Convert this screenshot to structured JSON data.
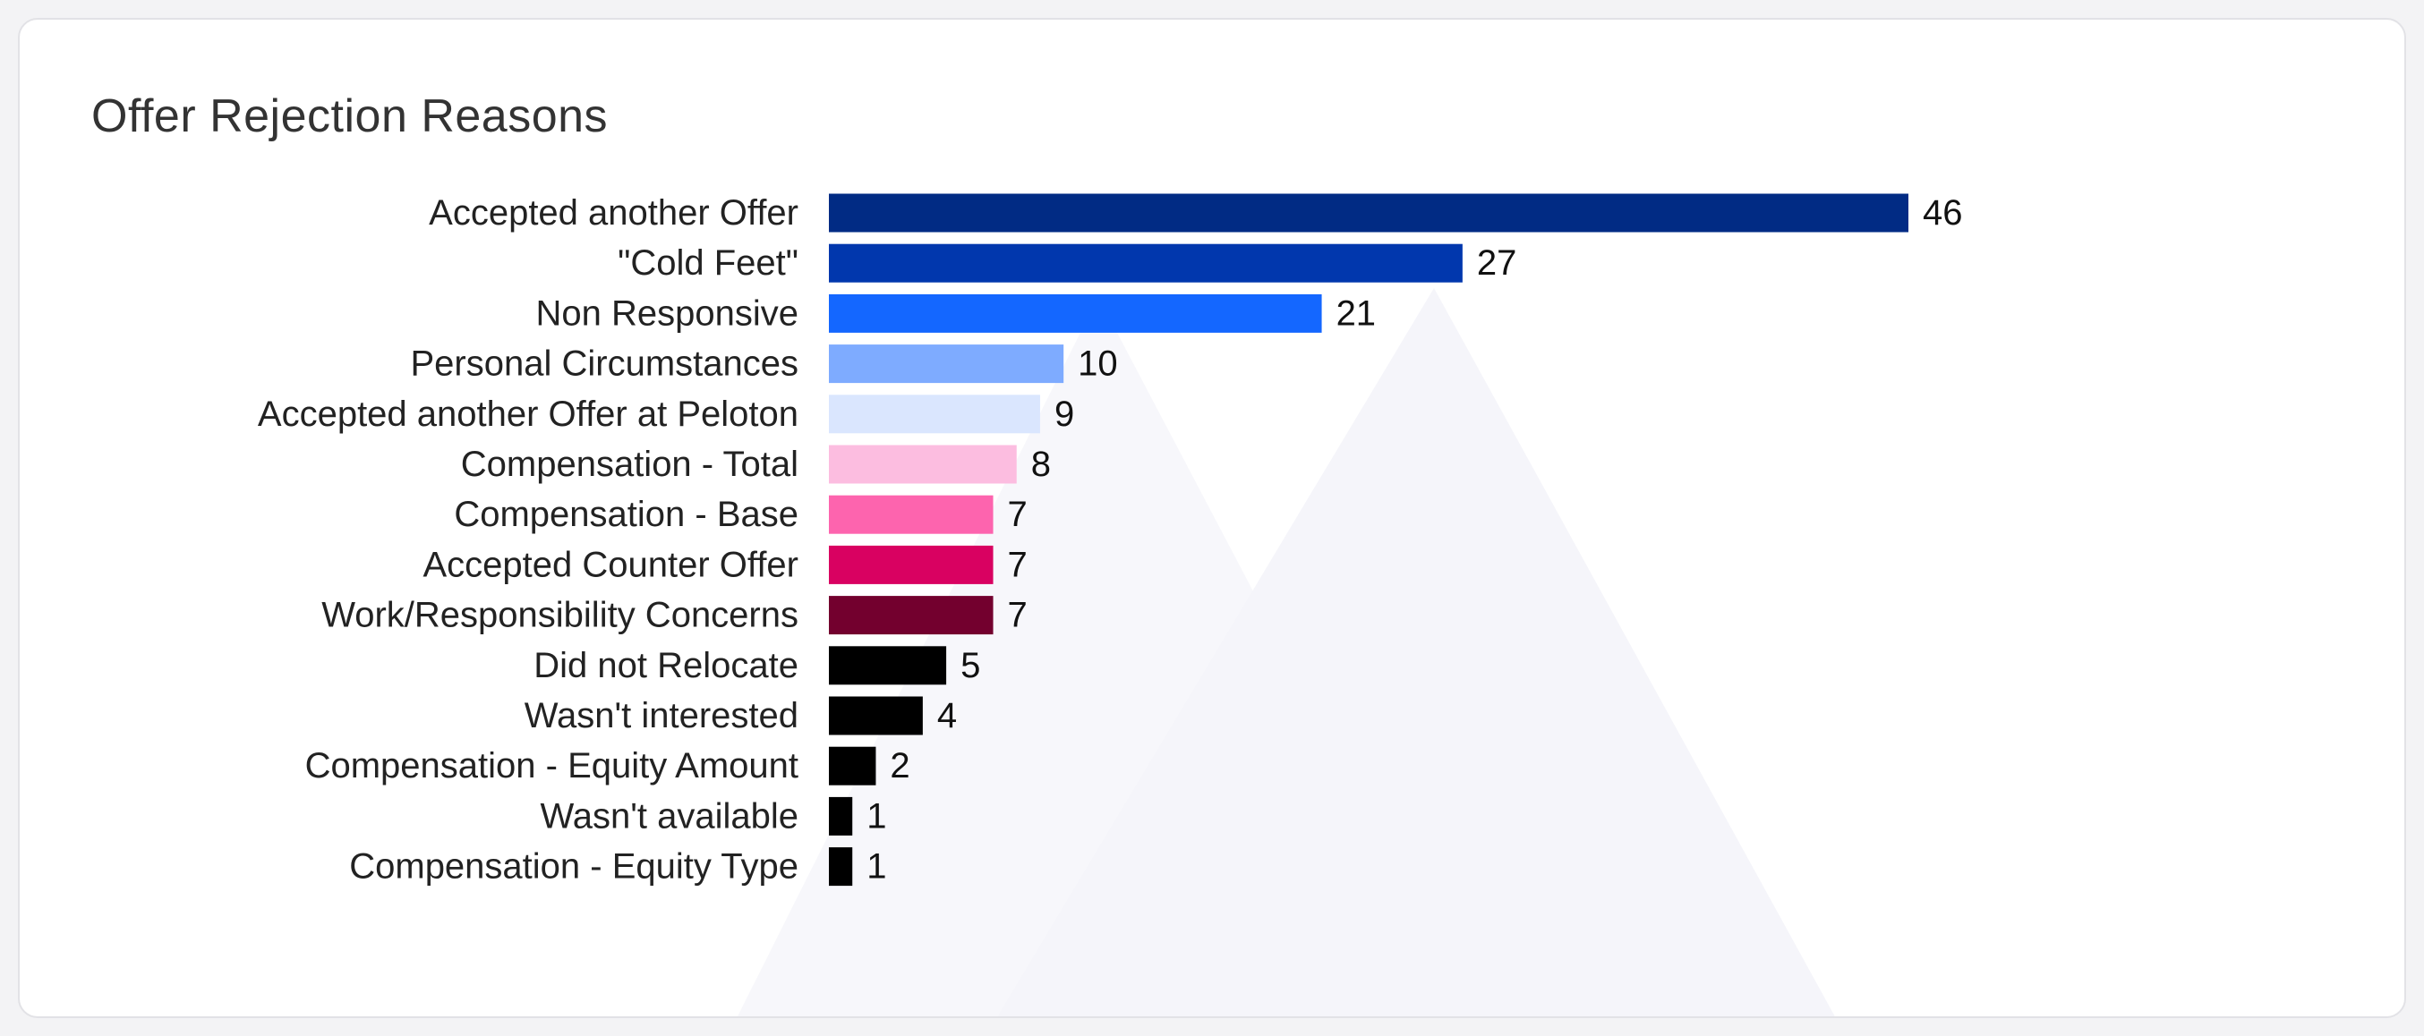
{
  "card": {
    "title": "Offer Rejection Reasons"
  },
  "chart_data": {
    "type": "bar",
    "orientation": "horizontal",
    "title": "Offer Rejection Reasons",
    "xlabel": "",
    "ylabel": "",
    "grid": false,
    "legend": "none",
    "xlim": [
      0,
      46
    ],
    "categories": [
      "Accepted another Offer",
      "\"Cold Feet\"",
      "Non Responsive",
      "Personal Circumstances",
      "Accepted another Offer at Peloton",
      "Compensation - Total",
      "Compensation - Base",
      "Accepted Counter Offer",
      "Work/Responsibility Concerns",
      "Did not Relocate",
      "Wasn't interested",
      "Compensation - Equity Amount",
      "Wasn't available",
      "Compensation - Equity Type"
    ],
    "values": [
      46,
      27,
      21,
      10,
      9,
      8,
      7,
      7,
      7,
      5,
      4,
      2,
      1,
      1
    ],
    "colors": [
      "#012b84",
      "#0137ad",
      "#1467ff",
      "#7eabff",
      "#dae6fe",
      "#fcbde0",
      "#fd64ae",
      "#d90161",
      "#73002e",
      "#000000",
      "#000000",
      "#000000",
      "#000000",
      "#000000"
    ]
  }
}
